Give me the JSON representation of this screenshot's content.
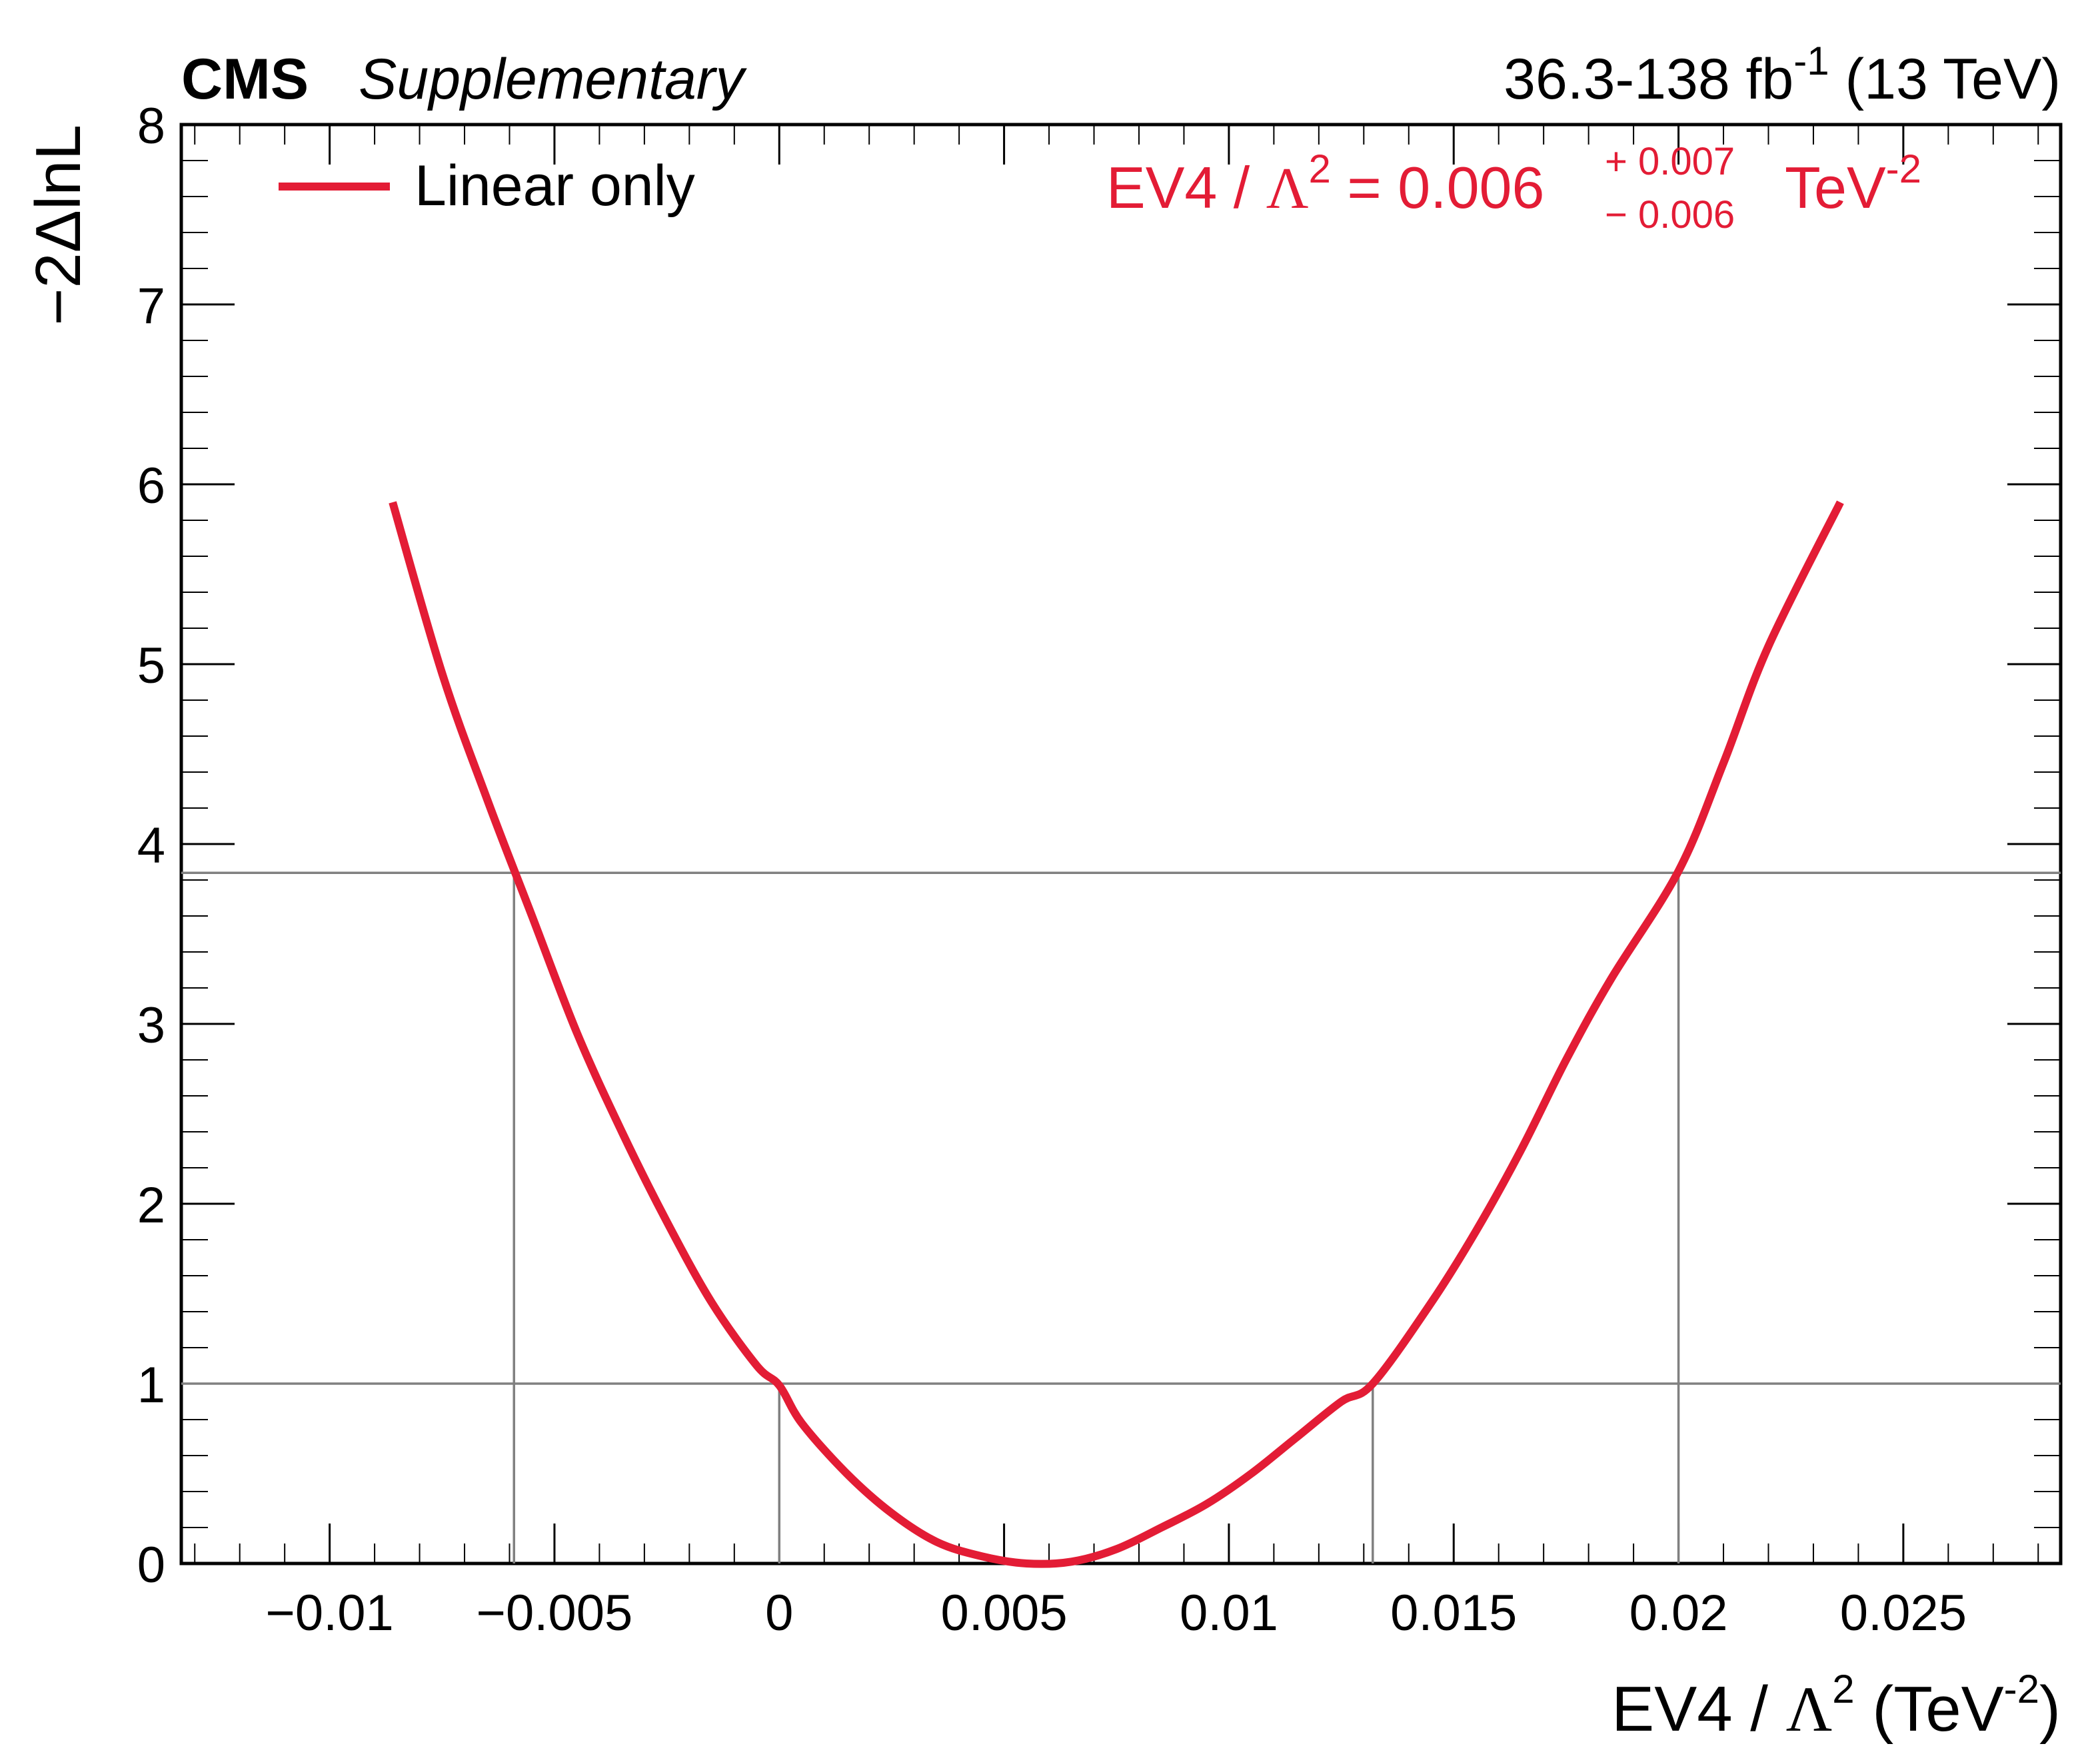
{
  "header": {
    "experiment": "CMS",
    "label": "Supplementary",
    "lumi": "36.3-138 fb",
    "lumi_exp": "-1",
    "energy": "(13 TeV)"
  },
  "legend": {
    "entry": "Linear only"
  },
  "result": {
    "param": "EV4",
    "sep": "/",
    "lambda": "Λ",
    "lambda_exp": "2",
    "equals": "=",
    "value": "0.006",
    "err_up": "+ 0.007",
    "err_down": "− 0.006",
    "unit": "TeV",
    "unit_exp": "-2"
  },
  "axes": {
    "x_title_main": "EV4",
    "x_title_sep": "/",
    "x_title_lambda": "Λ",
    "x_title_lambda_exp": "2",
    "x_title_unit_open": "(TeV",
    "x_title_unit_exp": "-2",
    "x_title_unit_close": ")",
    "y_title": "−2ΔlnL"
  },
  "colors": {
    "curve": "#e31c35",
    "reference_lines": "#808080",
    "axis": "#000000"
  },
  "chart_data": {
    "type": "line",
    "title": "",
    "xlabel": "EV4 / Λ2 (TeV-2)",
    "ylabel": "−2ΔlnL",
    "xlim": [
      -0.0133,
      0.0285
    ],
    "ylim": [
      0,
      8
    ],
    "x_major_ticks": [
      -0.01,
      -0.005,
      0,
      0.005,
      0.01,
      0.015,
      0.02,
      0.025
    ],
    "x_tick_labels": [
      "−0.01",
      "−0.005",
      "0",
      "0.005",
      "0.01",
      "0.015",
      "0.02",
      "0.025"
    ],
    "y_major_ticks": [
      0,
      1,
      2,
      3,
      4,
      5,
      6,
      7,
      8
    ],
    "y_tick_labels": [
      "0",
      "1",
      "2",
      "3",
      "4",
      "5",
      "6",
      "7",
      "8"
    ],
    "grid": false,
    "legend_position": "top-left",
    "series": [
      {
        "name": "Linear only",
        "color": "#e31c35",
        "x": [
          -0.0086,
          -0.0075,
          -0.0065,
          -0.0055,
          -0.0045,
          -0.0035,
          -0.0025,
          -0.0015,
          -0.0005,
          0.0,
          0.0005,
          0.0015,
          0.0025,
          0.0035,
          0.0045,
          0.0055,
          0.0065,
          0.0075,
          0.0085,
          0.0095,
          0.0105,
          0.0115,
          0.0125,
          0.0132,
          0.0145,
          0.0155,
          0.0165,
          0.0175,
          0.0185,
          0.02,
          0.021,
          0.022,
          0.0236
        ],
        "y": [
          5.9,
          4.95,
          4.25,
          3.6,
          2.95,
          2.4,
          1.9,
          1.45,
          1.1,
          0.99,
          0.78,
          0.5,
          0.28,
          0.12,
          0.04,
          0.0,
          0.01,
          0.08,
          0.2,
          0.33,
          0.5,
          0.7,
          0.9,
          1.0,
          1.45,
          1.85,
          2.3,
          2.8,
          3.25,
          3.85,
          4.45,
          5.1,
          5.9
        ]
      }
    ],
    "reference_lines": {
      "horizontal": [
        1.0,
        3.84
      ],
      "vertical_1sigma": [
        0.0,
        0.0132
      ],
      "vertical_95cl": [
        -0.0059,
        0.02
      ]
    }
  }
}
